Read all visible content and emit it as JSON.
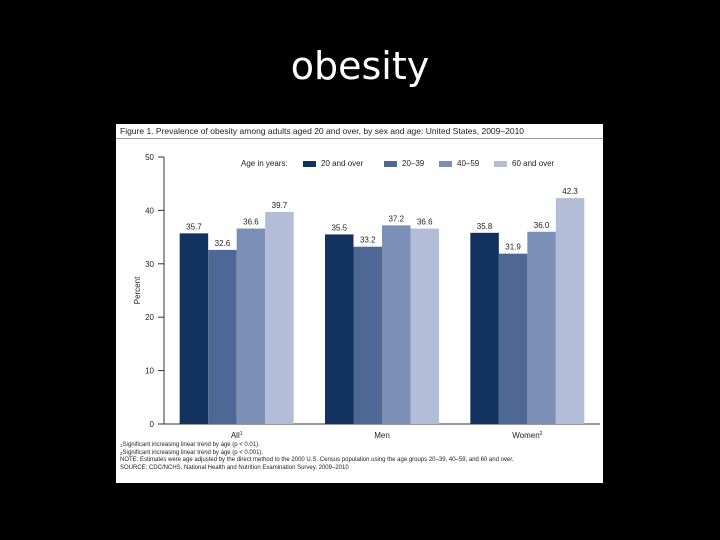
{
  "slide": {
    "title": "obesity"
  },
  "figure": {
    "caption": "Figure 1. Prevalence of obesity among adults aged 20 and over, by sex and age: United States, 2009–2010",
    "notes": [
      {
        "sup": "1",
        "text": "Significant increasing linear trend by age (p < 0.01)."
      },
      {
        "sup": "2",
        "text": "Significant increasing linear trend by age (p < 0.001)."
      },
      {
        "sup": "",
        "text": "NOTE: Estimates were age adjusted by the direct method to the 2000 U.S. Census population using the age groups 20–39, 40–59, and 60 and over."
      },
      {
        "sup": "",
        "text": "SOURCE: CDC/NCHS, National Health and Nutrition Examination Survey, 2009–2010"
      }
    ]
  },
  "chart_data": {
    "type": "bar",
    "title": "",
    "xlabel": "",
    "ylabel": "Percent",
    "ylim": [
      0,
      50
    ],
    "yticks": [
      0,
      10,
      20,
      30,
      40,
      50
    ],
    "grid": false,
    "legend_title": "Age in years:",
    "legend_position": "top",
    "categories": [
      {
        "label": "All",
        "sup": "1"
      },
      {
        "label": "Men",
        "sup": ""
      },
      {
        "label": "Women",
        "sup": "2"
      }
    ],
    "series": [
      {
        "name": "20 and over",
        "color": "#12325f",
        "values": [
          35.7,
          35.5,
          35.8
        ],
        "labels": [
          "35.7",
          "35.5",
          "35.8"
        ]
      },
      {
        "name": "20–39",
        "color": "#4f6794",
        "values": [
          32.6,
          33.2,
          31.9
        ],
        "labels": [
          "32.6",
          "33.2",
          "31.9"
        ]
      },
      {
        "name": "40–59",
        "color": "#7c8fb6",
        "values": [
          36.6,
          37.2,
          36.0
        ],
        "labels": [
          "36.6",
          "37.2",
          "36.0"
        ]
      },
      {
        "name": "60 and over",
        "color": "#b3bdd8",
        "values": [
          39.7,
          36.6,
          42.3
        ],
        "labels": [
          "39.7",
          "36.6",
          "42.3"
        ]
      }
    ]
  }
}
